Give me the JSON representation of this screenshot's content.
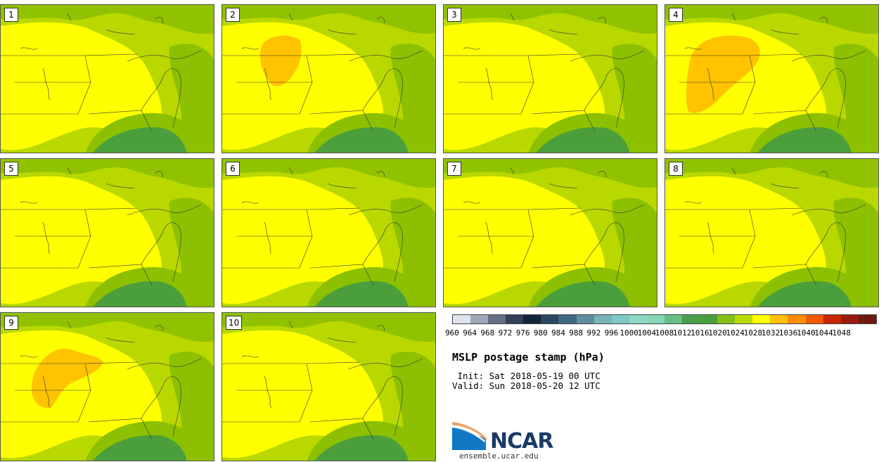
{
  "panels": [
    {
      "label": "1",
      "orange": null
    },
    {
      "label": "2",
      "orange": "small"
    },
    {
      "label": "3",
      "orange": null
    },
    {
      "label": "4",
      "orange": "large"
    },
    {
      "label": "5",
      "orange": null
    },
    {
      "label": "6",
      "orange": null
    },
    {
      "label": "7",
      "orange": null
    },
    {
      "label": "8",
      "orange": null
    },
    {
      "label": "9",
      "orange": "medium"
    },
    {
      "label": "10",
      "orange": null
    }
  ],
  "colorbar": {
    "ticks": [
      "960",
      "964",
      "968",
      "972",
      "976",
      "980",
      "984",
      "988",
      "992",
      "996",
      "1000",
      "1004",
      "1008",
      "1012",
      "1016",
      "1020",
      "1024",
      "1028",
      "1032",
      "1036",
      "1040",
      "1044",
      "1048"
    ],
    "colors": [
      "#dde3ea",
      "#a3a8b8",
      "#686e86",
      "#33405a",
      "#14243a",
      "#2c4560",
      "#3f6781",
      "#5e8d9f",
      "#77b3b8",
      "#7dc8c4",
      "#8ed8c6",
      "#86d6b3",
      "#66bf84",
      "#4c9e4e",
      "#4a9f3c",
      "#86be1a",
      "#bbdb00",
      "#ffff00",
      "#ffc000",
      "#ff8c00",
      "#f25a00",
      "#c82400",
      "#9a1a10",
      "#6e1a10"
    ]
  },
  "title": "MSLP postage stamp (hPa)",
  "init": " Init: Sat 2018-05-19 00 UTC",
  "valid": "Valid: Sun 2018-05-20 12 UTC",
  "logo": {
    "name": "NCAR",
    "url": "ensemble.ucar.edu"
  }
}
